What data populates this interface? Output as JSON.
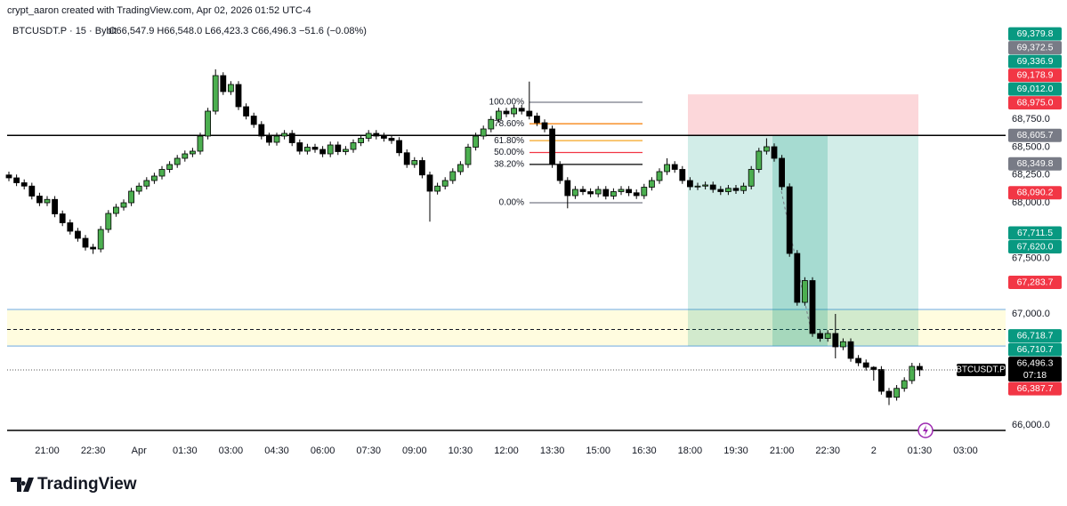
{
  "header": {
    "credit": "crypt_aaron created with TradingView.com, Apr 02, 2026 01:52 UTC-4",
    "symbol": "BTCUSDT.P · 15 · Bybit",
    "ohlc": "O66,547.9 H66,548.0 L66,423.3 C66,496.3 −51.6 (−0.08%)"
  },
  "footer": {
    "logo": "TradingView"
  },
  "chart_data": {
    "type": "candlestick",
    "categories": [
      null,
      null,
      null,
      null,
      null,
      "21:00",
      null,
      null,
      null,
      null,
      null,
      "22:30",
      null,
      null,
      null,
      null,
      null,
      "Apr",
      null,
      null,
      null,
      null,
      null,
      "01:30",
      null,
      null,
      null,
      null,
      null,
      "03:00",
      null,
      null,
      null,
      null,
      null,
      "04:30",
      null,
      null,
      null,
      null,
      null,
      "06:00",
      null,
      null,
      null,
      null,
      null,
      "07:30",
      null,
      null,
      null,
      null,
      null,
      "09:00",
      null,
      null,
      null,
      null,
      null,
      "10:30",
      null,
      null,
      null,
      null,
      null,
      "12:00",
      null,
      null,
      null,
      null,
      null,
      "13:30",
      null,
      null,
      null,
      null,
      null,
      "15:00",
      null,
      null,
      null,
      null,
      null,
      "16:30",
      null,
      null,
      null,
      null,
      null,
      "18:00",
      null,
      null,
      null,
      null,
      null,
      "19:30",
      null,
      null,
      null,
      null,
      null,
      "21:00",
      null,
      null,
      null,
      null,
      null,
      "22:30",
      null,
      null,
      null,
      null,
      null,
      "2",
      null,
      null,
      null,
      null,
      null,
      "01:30",
      null,
      null,
      null,
      null,
      null,
      "03:00",
      null,
      null,
      null,
      null
    ],
    "open": [
      68250,
      68224,
      68180,
      68150,
      68060,
      68000,
      68030,
      67900,
      67820,
      67744,
      67680,
      67600,
      67584,
      67760,
      67904,
      67960,
      68000,
      68104,
      68150,
      68200,
      68240,
      68300,
      68344,
      68400,
      68440,
      68464,
      68600,
      68824,
      69144,
      69000,
      69064,
      68864,
      68780,
      68704,
      68600,
      68544,
      68600,
      68624,
      68540,
      68464,
      68500,
      68480,
      68440,
      68520,
      68460,
      68480,
      68540,
      68580,
      68624,
      68600,
      68580,
      68560,
      68450,
      68344,
      68380,
      68250,
      68104,
      68150,
      68200,
      68280,
      68344,
      68500,
      68600,
      68664,
      68750,
      68824,
      68800,
      68850,
      68824,
      68780,
      68720,
      68664,
      68344,
      68200,
      68064,
      68120,
      68100,
      68080,
      68120,
      68060,
      68100,
      68120,
      68090,
      68064,
      68140,
      68200,
      68280,
      68344,
      68300,
      68200,
      68144,
      68150,
      68160,
      68120,
      68100,
      68130,
      68110,
      68150,
      68300,
      68464,
      68504,
      68400,
      68144,
      67544,
      67104,
      67300,
      66824,
      66780,
      66824,
      66704,
      66750,
      66600,
      66560,
      66520,
      66500,
      66304,
      66250,
      66330,
      66400,
      66528,
      null,
      null,
      null,
      null,
      null,
      null,
      null,
      null,
      null,
      null
    ],
    "high": [
      68280,
      68254,
      68210,
      68180,
      68090,
      68060,
      68060,
      67930,
      67850,
      67774,
      67710,
      67630,
      67790,
      67934,
      67990,
      68030,
      68134,
      68180,
      68230,
      68270,
      68330,
      68374,
      68430,
      68470,
      68494,
      68630,
      68854,
      69200,
      69174,
      69094,
      69094,
      68894,
      68810,
      68734,
      68630,
      68630,
      68654,
      68654,
      68570,
      68530,
      68530,
      68510,
      68550,
      68550,
      68510,
      68570,
      68610,
      68654,
      68654,
      68630,
      68610,
      68590,
      68480,
      68410,
      68410,
      68280,
      68180,
      68230,
      68310,
      68374,
      68530,
      68630,
      68694,
      68780,
      68854,
      68854,
      68880,
      68880,
      69090,
      68810,
      68750,
      68694,
      68374,
      68230,
      68150,
      68150,
      68130,
      68150,
      68150,
      68130,
      68150,
      68150,
      68120,
      68170,
      68230,
      68310,
      68400,
      68374,
      68330,
      68230,
      68180,
      68190,
      68190,
      68150,
      68160,
      68160,
      68180,
      68330,
      68494,
      68580,
      68534,
      68430,
      68174,
      67574,
      67330,
      67330,
      66854,
      66854,
      67000,
      66780,
      66780,
      66630,
      66590,
      66530,
      66530,
      66334,
      66360,
      66430,
      66560,
      66558,
      null,
      null,
      null,
      null,
      null,
      null,
      null,
      null,
      null,
      null
    ],
    "low": [
      68194,
      68150,
      68120,
      68030,
      67970,
      67970,
      67870,
      67790,
      67714,
      67650,
      67570,
      67540,
      67554,
      67730,
      67874,
      67930,
      67970,
      68074,
      68120,
      68170,
      68210,
      68270,
      68314,
      68370,
      68410,
      68434,
      68570,
      68794,
      68970,
      68970,
      68834,
      68750,
      68674,
      68570,
      68514,
      68514,
      68570,
      68510,
      68434,
      68434,
      68450,
      68410,
      68410,
      68430,
      68430,
      68450,
      68510,
      68550,
      68570,
      68550,
      68530,
      68420,
      68314,
      68314,
      68220,
      67830,
      68074,
      68120,
      68170,
      68250,
      68314,
      68470,
      68570,
      68634,
      68720,
      68770,
      68770,
      68794,
      68750,
      68690,
      68634,
      68314,
      68170,
      67950,
      68034,
      68070,
      68050,
      68050,
      68030,
      68030,
      68070,
      68060,
      68034,
      68034,
      68110,
      68170,
      68250,
      68270,
      68170,
      68114,
      68114,
      68120,
      68090,
      68070,
      68070,
      68080,
      68080,
      68120,
      68270,
      68434,
      68370,
      68114,
      67514,
      67074,
      67074,
      66794,
      66750,
      66750,
      66600,
      66674,
      66570,
      66530,
      66490,
      66400,
      66274,
      66180,
      66220,
      66300,
      66370,
      66440,
      null,
      null,
      null,
      null,
      null,
      null,
      null,
      null,
      null,
      null
    ],
    "close": [
      68224,
      68180,
      68150,
      68060,
      68000,
      68030,
      67900,
      67820,
      67744,
      67680,
      67600,
      67584,
      67760,
      67904,
      67960,
      68000,
      68104,
      68150,
      68200,
      68240,
      68300,
      68344,
      68400,
      68440,
      68464,
      68600,
      68824,
      69144,
      69000,
      69064,
      68864,
      68780,
      68704,
      68600,
      68544,
      68600,
      68624,
      68540,
      68464,
      68500,
      68480,
      68440,
      68520,
      68460,
      68480,
      68540,
      68580,
      68624,
      68600,
      68580,
      68560,
      68450,
      68344,
      68380,
      68250,
      68104,
      68150,
      68200,
      68280,
      68344,
      68500,
      68600,
      68664,
      68750,
      68824,
      68800,
      68850,
      68824,
      68780,
      68720,
      68664,
      68344,
      68200,
      68064,
      68120,
      68100,
      68080,
      68120,
      68060,
      68100,
      68120,
      68090,
      68064,
      68140,
      68200,
      68280,
      68344,
      68300,
      68200,
      68144,
      68150,
      68160,
      68120,
      68100,
      68130,
      68110,
      68150,
      68300,
      68464,
      68504,
      68400,
      68144,
      67544,
      67104,
      67300,
      66824,
      66780,
      66824,
      66704,
      66750,
      66600,
      66560,
      66520,
      66500,
      66304,
      66250,
      66330,
      66400,
      66528,
      66496,
      null,
      null,
      null,
      null,
      null,
      null,
      null,
      null,
      null,
      null
    ],
    "up_color": "#4caf50",
    "down_color": "#000000",
    "ylim": [
      65904,
      69624
    ],
    "yticks": [
      {
        "value": 68750,
        "label": "68,750.0"
      },
      {
        "value": 68500,
        "label": "68,500.0"
      },
      {
        "value": 68250,
        "label": "68,250.0"
      },
      {
        "value": 68000,
        "label": "68,000.0"
      },
      {
        "value": 67500,
        "label": "67,500.0"
      },
      {
        "value": 67000,
        "label": "67,000.0"
      },
      {
        "value": 66000,
        "label": "66,000.0"
      }
    ],
    "grid": false,
    "hlines": [
      68605.7,
      65952
    ],
    "zone": {
      "top": 67040,
      "bottom": 66710.7,
      "mid": 66860
    },
    "position": {
      "stop": 68975,
      "entry": 68605.7,
      "target": 66710.7
    },
    "fib": [
      {
        "label": "100.00%",
        "price": 68904,
        "color": "#787b86"
      },
      {
        "label": "78.60%",
        "price": 68711,
        "color": "#f57c00"
      },
      {
        "label": "61.80%",
        "price": 68559,
        "color": "#f5a623"
      },
      {
        "label": "50.00%",
        "price": 68452,
        "color": "#f23645"
      },
      {
        "label": "38.20%",
        "price": 68345,
        "color": "#000000"
      },
      {
        "label": "0.00%",
        "price": 68000,
        "color": "#787b86"
      }
    ],
    "last_price": {
      "value": 66496.3,
      "symbol_label": "BTCUSDT.P",
      "countdown": "07:18"
    },
    "price_tags": [
      {
        "value": 69379.8,
        "label": "69,379.8",
        "color": "#089981"
      },
      {
        "value": 69372.5,
        "label": "69,372.5",
        "color": "#787b86"
      },
      {
        "value": 69336.9,
        "label": "69,336.9",
        "color": "#089981"
      },
      {
        "value": 69178.9,
        "label": "69,178.9",
        "color": "#f23645"
      },
      {
        "value": 69012,
        "label": "69,012.0",
        "color": "#089981"
      },
      {
        "value": 68975,
        "label": "68,975.0",
        "color": "#f23645"
      },
      {
        "value": 68605.7,
        "label": "68,605.7",
        "color": "#787b86"
      },
      {
        "value": 68349.8,
        "label": "68,349.8",
        "color": "#787b86"
      },
      {
        "value": 68090.2,
        "label": "68,090.2",
        "color": "#f23645"
      },
      {
        "value": 67711.5,
        "label": "67,711.5",
        "color": "#089981"
      },
      {
        "value": 67620,
        "label": "67,620.0",
        "color": "#089981"
      },
      {
        "value": 67283.7,
        "label": "67,283.7",
        "color": "#f23645"
      },
      {
        "value": 66718.7,
        "label": "66,718.7",
        "color": "#089981"
      },
      {
        "value": 66710.7,
        "label": "66,710.7",
        "color": "#089981"
      },
      {
        "value": 66496.3,
        "label": "66,496.3",
        "color": "#000000"
      },
      {
        "value": 66387.7,
        "label": "66,387.7",
        "color": "#f23645"
      }
    ]
  }
}
